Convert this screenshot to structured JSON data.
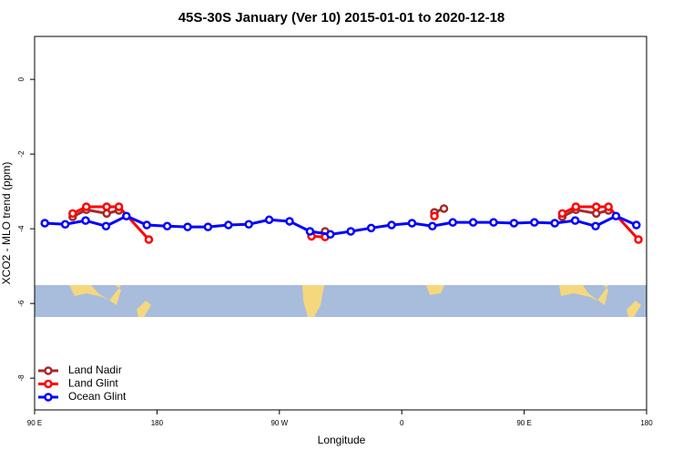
{
  "chart_data": {
    "type": "line",
    "title": "45S-30S January (Ver 10)   2015-01-01 to 2020-12-18",
    "x_label": "Longitude",
    "y_label": "XCO2 - MLO trend (ppm)",
    "xlim": [
      90,
      540
    ],
    "ylim": [
      -8.85,
      1.15
    ],
    "xticks": [
      {
        "value": 90,
        "label": "90 E"
      },
      180,
      {
        "value": 270,
        "label": "90 W"
      },
      {
        "value": 360,
        "label": "0"
      },
      {
        "value": 450,
        "label": "90 E"
      },
      {
        "value": 540,
        "label": "180"
      }
    ],
    "yticks": [
      0,
      -2,
      -4,
      -6,
      -8
    ],
    "legend": "bottom-left",
    "series": [
      {
        "name": "Land Nadir",
        "color": "#a52a2a",
        "x": [
          118,
          128,
          143,
          152,
          null,
          303.6,
          null,
          384,
          391,
          null,
          478,
          488,
          503,
          512
        ],
        "values": [
          -3.68,
          -3.49,
          -3.59,
          -3.51,
          null,
          -4.07,
          null,
          -3.56,
          -3.46,
          null,
          -3.68,
          -3.49,
          -3.59,
          -3.51
        ]
      },
      {
        "name": "Land Glint",
        "color": "#ff0000",
        "x": [
          118,
          128,
          143,
          152,
          174,
          null,
          293.6,
          303.6,
          null,
          384,
          null,
          478,
          488,
          503,
          512,
          534
        ],
        "values": [
          -3.59,
          -3.41,
          -3.41,
          -3.41,
          -4.29,
          null,
          -4.2,
          -4.22,
          null,
          -3.66,
          null,
          -3.59,
          -3.41,
          -3.41,
          -3.41,
          -4.29
        ]
      },
      {
        "name": "Ocean Glint",
        "color": "#0000ff",
        "x": [
          97.5,
          112.5,
          127.5,
          142.5,
          157.5,
          172.5,
          187.5,
          202.5,
          217.5,
          232.5,
          247.5,
          262.5,
          277.5,
          292.5,
          307.5,
          322.5,
          337.5,
          352.5,
          367.5,
          382.5,
          397.5,
          412.5,
          427.5,
          442.5,
          457.5,
          472.5,
          487.5,
          502.5,
          517.5,
          532.5
        ],
        "values": [
          -3.85,
          -3.88,
          -3.78,
          -3.93,
          -3.66,
          -3.9,
          -3.93,
          -3.95,
          -3.95,
          -3.9,
          -3.88,
          -3.76,
          -3.8,
          -4.07,
          -4.15,
          -4.07,
          -3.98,
          -3.9,
          -3.85,
          -3.93,
          -3.83,
          -3.83,
          -3.83,
          -3.85,
          -3.83,
          -3.85,
          -3.78,
          -3.93,
          -3.66,
          -3.9
        ]
      }
    ]
  }
}
